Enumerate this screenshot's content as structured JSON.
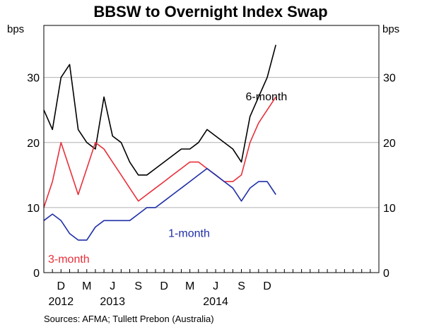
{
  "chart_data": {
    "type": "line",
    "title": "BBSW to Overnight Index Swap",
    "ylabel_left": "bps",
    "ylabel_right": "bps",
    "ylim": [
      0,
      38
    ],
    "yticks": [
      0,
      10,
      20,
      30
    ],
    "x_start": "2011-10",
    "x_end": "2015-01",
    "month_labels": [
      {
        "date": "2011-12",
        "label": "D"
      },
      {
        "date": "2012-03",
        "label": "M"
      },
      {
        "date": "2012-06",
        "label": "J"
      },
      {
        "date": "2012-09",
        "label": "S"
      },
      {
        "date": "2012-12",
        "label": "D"
      },
      {
        "date": "2013-03",
        "label": "M"
      },
      {
        "date": "2013-06",
        "label": "J"
      },
      {
        "date": "2013-09",
        "label": "S"
      },
      {
        "date": "2013-12",
        "label": "D"
      }
    ],
    "year_labels": [
      {
        "date": "2011-12",
        "label": "2012"
      },
      {
        "date": "2012-06",
        "label": "2013"
      },
      {
        "date": "2013-06",
        "label": "2014"
      }
    ],
    "grid": true,
    "series": [
      {
        "name": "6-month",
        "color": "#000000",
        "label_date": "2013-09",
        "label_value": 26.5,
        "points": [
          [
            "2011-10",
            25
          ],
          [
            "2011-11",
            22
          ],
          [
            "2011-12",
            30
          ],
          [
            "2012-01",
            32
          ],
          [
            "2012-02",
            22
          ],
          [
            "2012-03",
            20
          ],
          [
            "2012-04",
            19
          ],
          [
            "2012-05",
            27
          ],
          [
            "2012-06",
            21
          ],
          [
            "2012-07",
            20
          ],
          [
            "2012-08",
            17
          ],
          [
            "2012-09",
            15
          ],
          [
            "2012-10",
            15
          ],
          [
            "2012-11",
            16
          ],
          [
            "2012-12",
            17
          ],
          [
            "2013-01",
            18
          ],
          [
            "2013-02",
            19
          ],
          [
            "2013-03",
            19
          ],
          [
            "2013-04",
            20
          ],
          [
            "2013-05",
            22
          ],
          [
            "2013-06",
            21
          ],
          [
            "2013-07",
            20
          ],
          [
            "2013-08",
            19
          ],
          [
            "2013-09",
            17
          ],
          [
            "2013-10",
            24
          ],
          [
            "2013-11",
            27
          ],
          [
            "2013-12",
            30
          ],
          [
            "2014-01",
            35
          ]
        ]
      },
      {
        "name": "3-month",
        "color": "#e8303a",
        "label_date": "2011-10",
        "label_value": 1.5,
        "points": [
          [
            "2011-10",
            10
          ],
          [
            "2011-11",
            14
          ],
          [
            "2011-12",
            20
          ],
          [
            "2012-01",
            16
          ],
          [
            "2012-02",
            12
          ],
          [
            "2012-03",
            16
          ],
          [
            "2012-04",
            20
          ],
          [
            "2012-05",
            19
          ],
          [
            "2012-06",
            17
          ],
          [
            "2012-07",
            15
          ],
          [
            "2012-08",
            13
          ],
          [
            "2012-09",
            11
          ],
          [
            "2012-10",
            12
          ],
          [
            "2012-11",
            13
          ],
          [
            "2012-12",
            14
          ],
          [
            "2013-01",
            15
          ],
          [
            "2013-02",
            16
          ],
          [
            "2013-03",
            17
          ],
          [
            "2013-04",
            17
          ],
          [
            "2013-05",
            16
          ],
          [
            "2013-06",
            15
          ],
          [
            "2013-07",
            14
          ],
          [
            "2013-08",
            14
          ],
          [
            "2013-09",
            15
          ],
          [
            "2013-10",
            20
          ],
          [
            "2013-11",
            23
          ],
          [
            "2013-12",
            25
          ],
          [
            "2014-01",
            27
          ]
        ]
      },
      {
        "name": "1-month",
        "color": "#1f2fa8",
        "label_date": "2012-12",
        "label_value": 5.5,
        "points": [
          [
            "2011-10",
            8
          ],
          [
            "2011-11",
            9
          ],
          [
            "2011-12",
            8
          ],
          [
            "2012-01",
            6
          ],
          [
            "2012-02",
            5
          ],
          [
            "2012-03",
            5
          ],
          [
            "2012-04",
            7
          ],
          [
            "2012-05",
            8
          ],
          [
            "2012-06",
            8
          ],
          [
            "2012-07",
            8
          ],
          [
            "2012-08",
            8
          ],
          [
            "2012-09",
            9
          ],
          [
            "2012-10",
            10
          ],
          [
            "2012-11",
            10
          ],
          [
            "2012-12",
            11
          ],
          [
            "2013-01",
            12
          ],
          [
            "2013-02",
            13
          ],
          [
            "2013-03",
            14
          ],
          [
            "2013-04",
            15
          ],
          [
            "2013-05",
            16
          ],
          [
            "2013-06",
            15
          ],
          [
            "2013-07",
            14
          ],
          [
            "2013-08",
            13
          ],
          [
            "2013-09",
            11
          ],
          [
            "2013-10",
            13
          ],
          [
            "2013-11",
            14
          ],
          [
            "2013-12",
            14
          ],
          [
            "2014-01",
            12
          ]
        ]
      }
    ],
    "source": "Sources:   AFMA; Tullett Prebon (Australia)"
  }
}
